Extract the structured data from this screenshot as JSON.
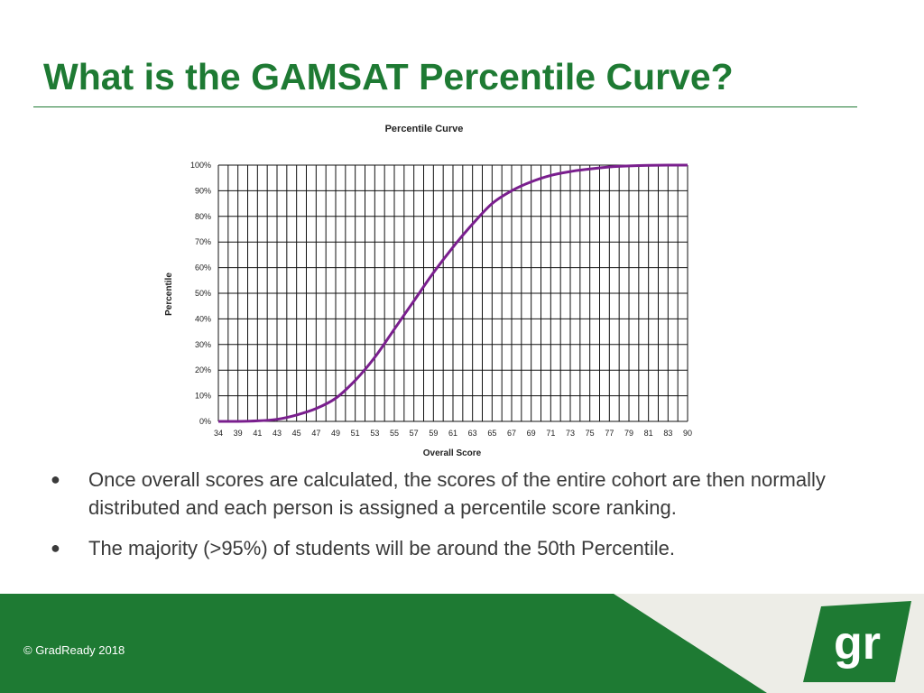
{
  "slide": {
    "title": "What is the GAMSAT Percentile Curve?",
    "bullets": [
      "Once overall scores are calculated, the scores of the entire cohort are then normally distributed and each person is assigned a percentile score ranking.",
      "The majority (>95%) of students will be around the 50th Percentile."
    ],
    "bullet_marker": "●"
  },
  "footer": {
    "copyright": "© GradReady 2018",
    "logo_text": "gr"
  },
  "colors": {
    "brand_green": "#1e7a33",
    "curve": "#7a1f8e",
    "footer_light": "#edede7"
  },
  "chart_data": {
    "type": "line",
    "title": "Percentile Curve",
    "xlabel": "Overall Score",
    "ylabel": "Percentile",
    "grid": true,
    "x": [
      34,
      39,
      41,
      43,
      45,
      47,
      49,
      51,
      53,
      55,
      57,
      59,
      61,
      63,
      65,
      67,
      69,
      71,
      73,
      75,
      77,
      79,
      81,
      83,
      90
    ],
    "x_tick_labels": [
      "34",
      "39",
      "41",
      "43",
      "45",
      "47",
      "49",
      "51",
      "53",
      "55",
      "57",
      "59",
      "61",
      "63",
      "65",
      "67",
      "69",
      "71",
      "73",
      "75",
      "77",
      "79",
      "81",
      "83",
      "90"
    ],
    "y_tick_labels": [
      "0%",
      "10%",
      "20%",
      "30%",
      "40%",
      "50%",
      "60%",
      "70%",
      "80%",
      "90%",
      "100%"
    ],
    "ylim": [
      0,
      100
    ],
    "series": [
      {
        "name": "Percentile",
        "values": [
          0,
          0,
          0.2,
          0.8,
          2.5,
          5,
          9,
          16,
          25,
          36,
          47,
          58,
          68,
          77,
          85,
          90,
          93.5,
          96,
          97.5,
          98.5,
          99.3,
          99.7,
          99.9,
          100,
          100
        ]
      }
    ]
  }
}
